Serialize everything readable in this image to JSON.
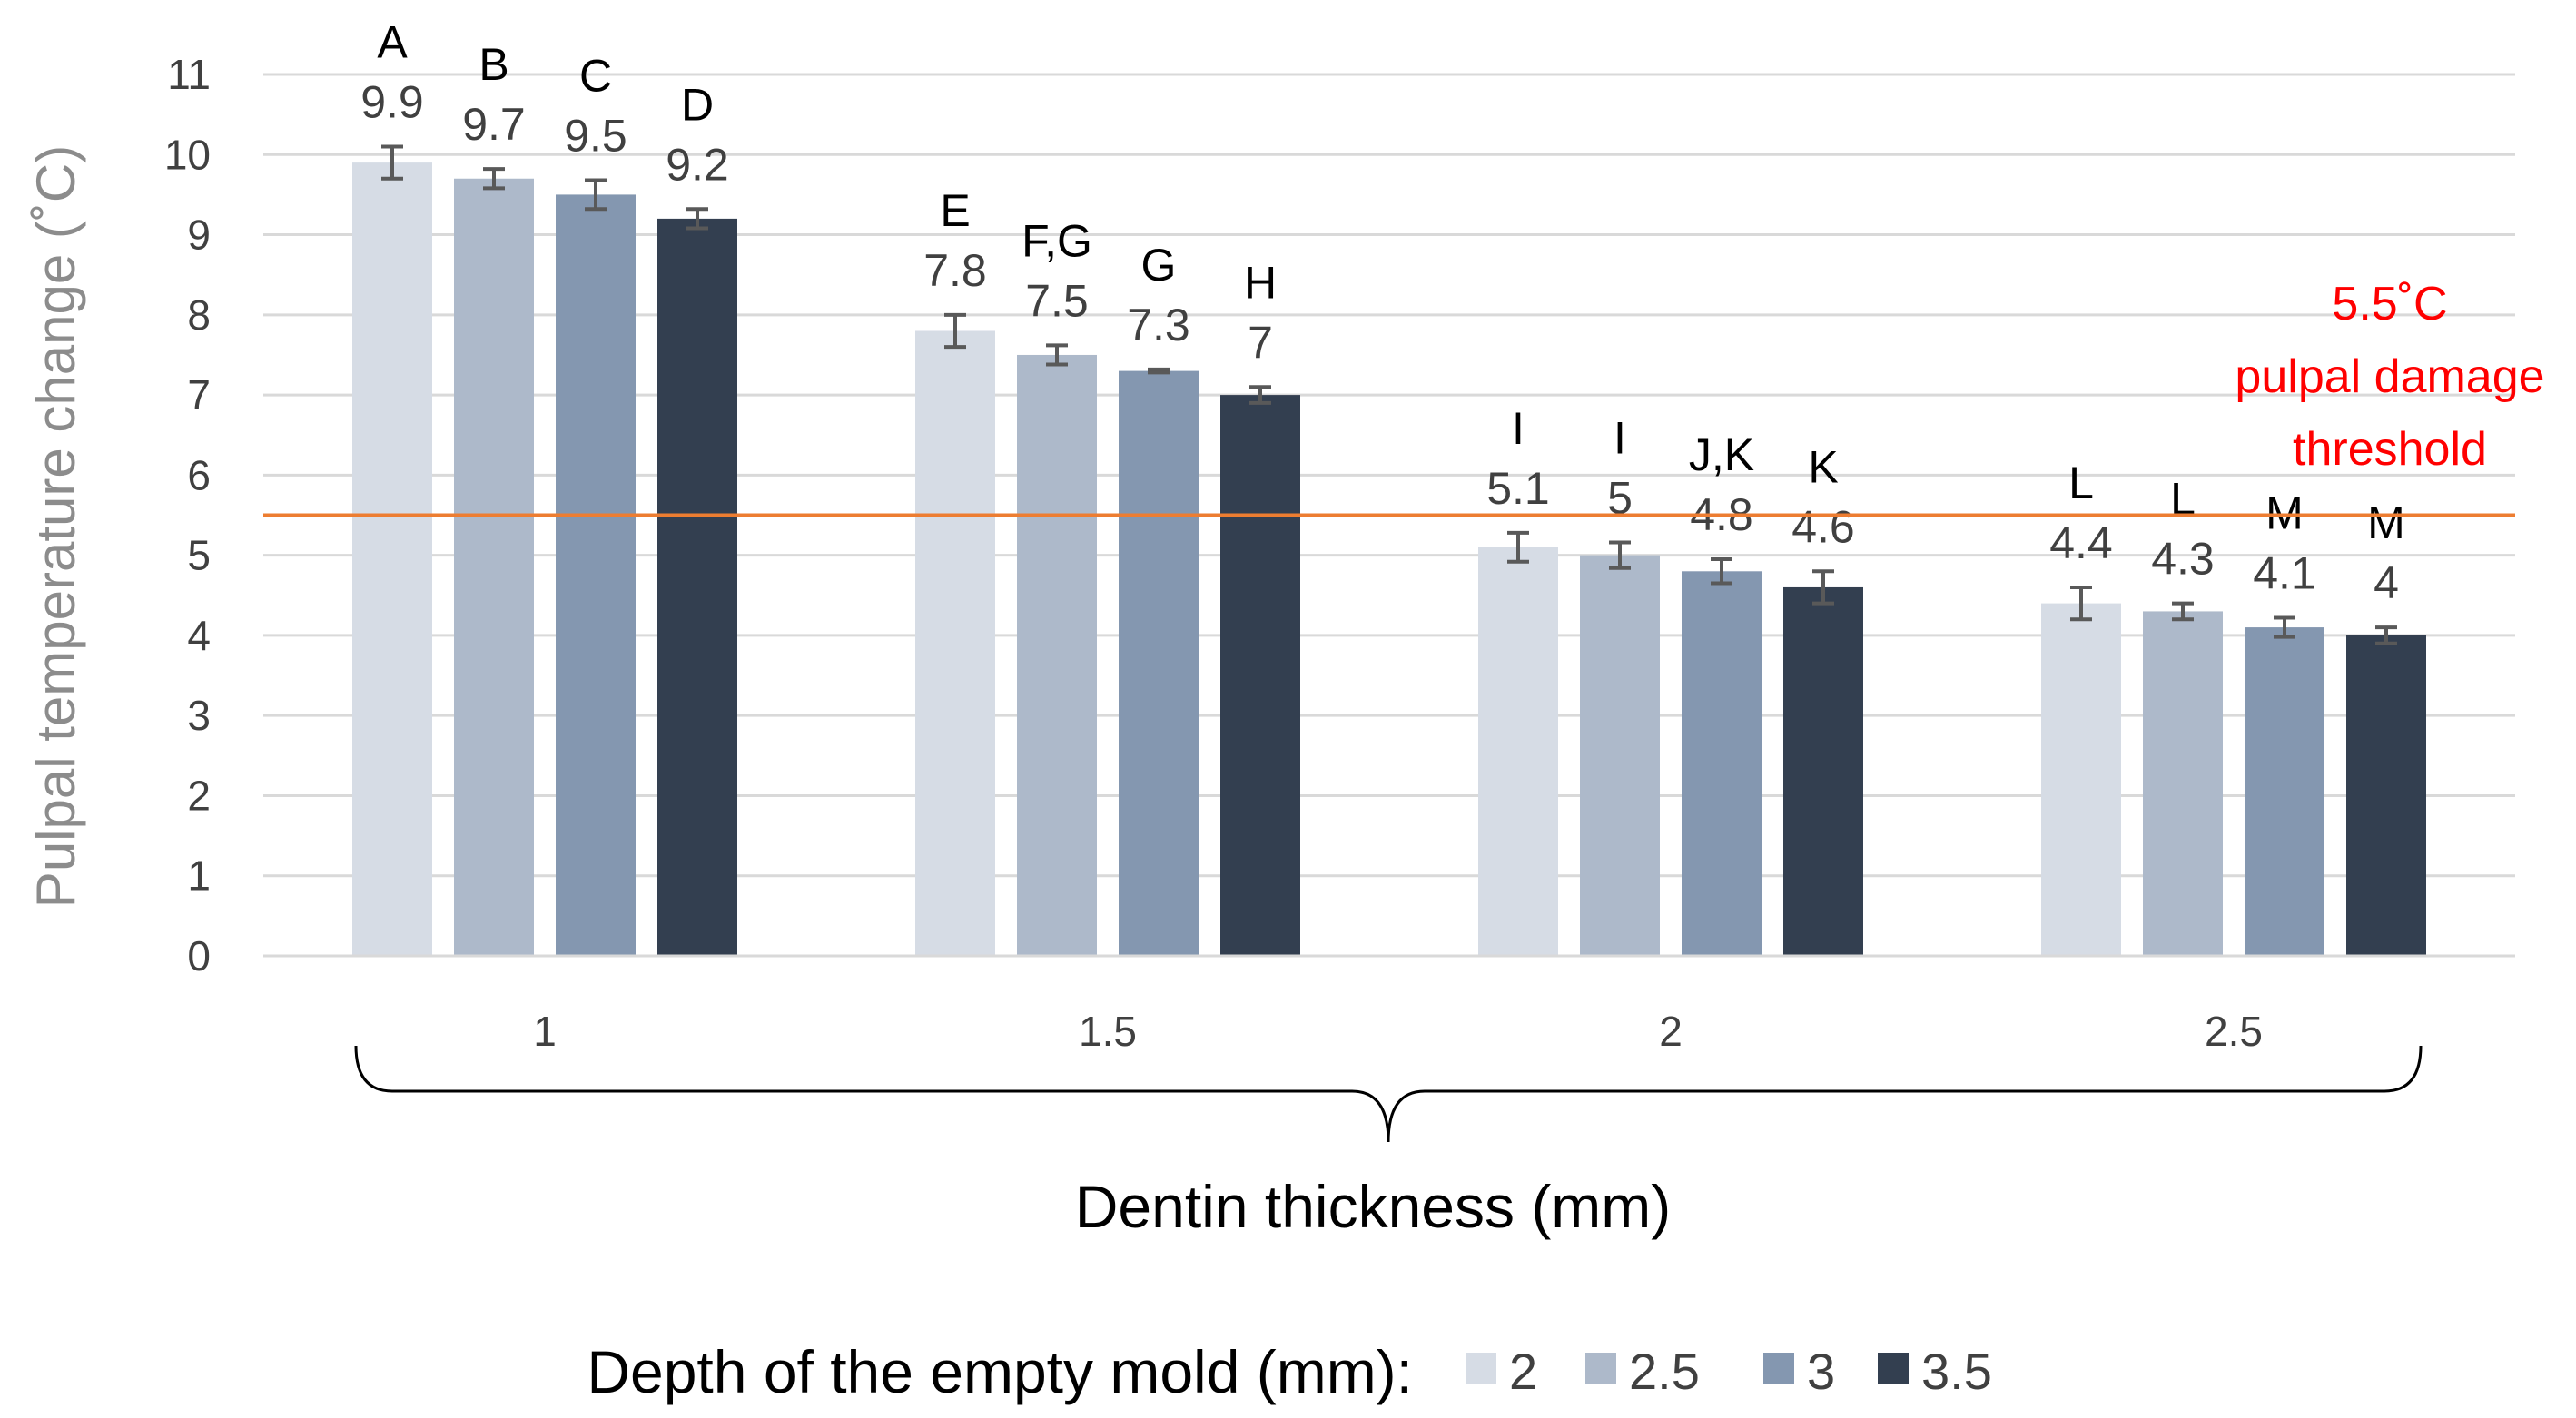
{
  "chart_data": {
    "type": "bar",
    "title": "",
    "ylabel": "Pulpal temperature change (˚C)",
    "xlabel": "Dentin thickness (mm)",
    "ylim": [
      0,
      11
    ],
    "yticks": [
      "0",
      "1",
      "2",
      "3",
      "4",
      "5",
      "6",
      "7",
      "8",
      "9",
      "10",
      "11"
    ],
    "categories": [
      "1",
      "1.5",
      "2",
      "2.5"
    ],
    "series": [
      {
        "name": "2",
        "color": "#d6dce5",
        "values": [
          9.9,
          7.8,
          5.1,
          4.4
        ],
        "errors": [
          0.2,
          0.2,
          0.18,
          0.2
        ],
        "letters": [
          "A",
          "E",
          "I",
          "L"
        ]
      },
      {
        "name": "2.5",
        "color": "#adb9ca",
        "values": [
          9.7,
          7.5,
          5.0,
          4.3
        ],
        "errors": [
          0.12,
          0.12,
          0.16,
          0.1
        ],
        "letters": [
          "B",
          "F,G",
          "I",
          "L"
        ]
      },
      {
        "name": "3",
        "color": "#8497b0",
        "values": [
          9.5,
          7.3,
          4.8,
          4.1
        ],
        "errors": [
          0.18,
          0.02,
          0.15,
          0.12
        ],
        "letters": [
          "C",
          "G",
          "J,K",
          "M"
        ]
      },
      {
        "name": "3.5",
        "color": "#333f50",
        "values": [
          9.2,
          7.0,
          4.6,
          4.0
        ],
        "errors": [
          0.12,
          0.1,
          0.2,
          0.1
        ],
        "letters": [
          "D",
          "H",
          "K",
          "M"
        ]
      }
    ],
    "value_labels": [
      [
        "9.9",
        "7.8",
        "5.1",
        "4.4"
      ],
      [
        "9.7",
        "7.5",
        "5",
        "4.3"
      ],
      [
        "9.5",
        "7.3",
        "4.8",
        "4.1"
      ],
      [
        "9.2",
        "7",
        "4.6",
        "4"
      ]
    ],
    "threshold": {
      "value": 5.5,
      "color": "#ed7d31",
      "label_lines": [
        "5.5˚C",
        "pulpal damage",
        "threshold"
      ]
    },
    "legend": {
      "title": "Depth of the empty mold (mm):",
      "position": "bottom"
    },
    "grid": true
  }
}
